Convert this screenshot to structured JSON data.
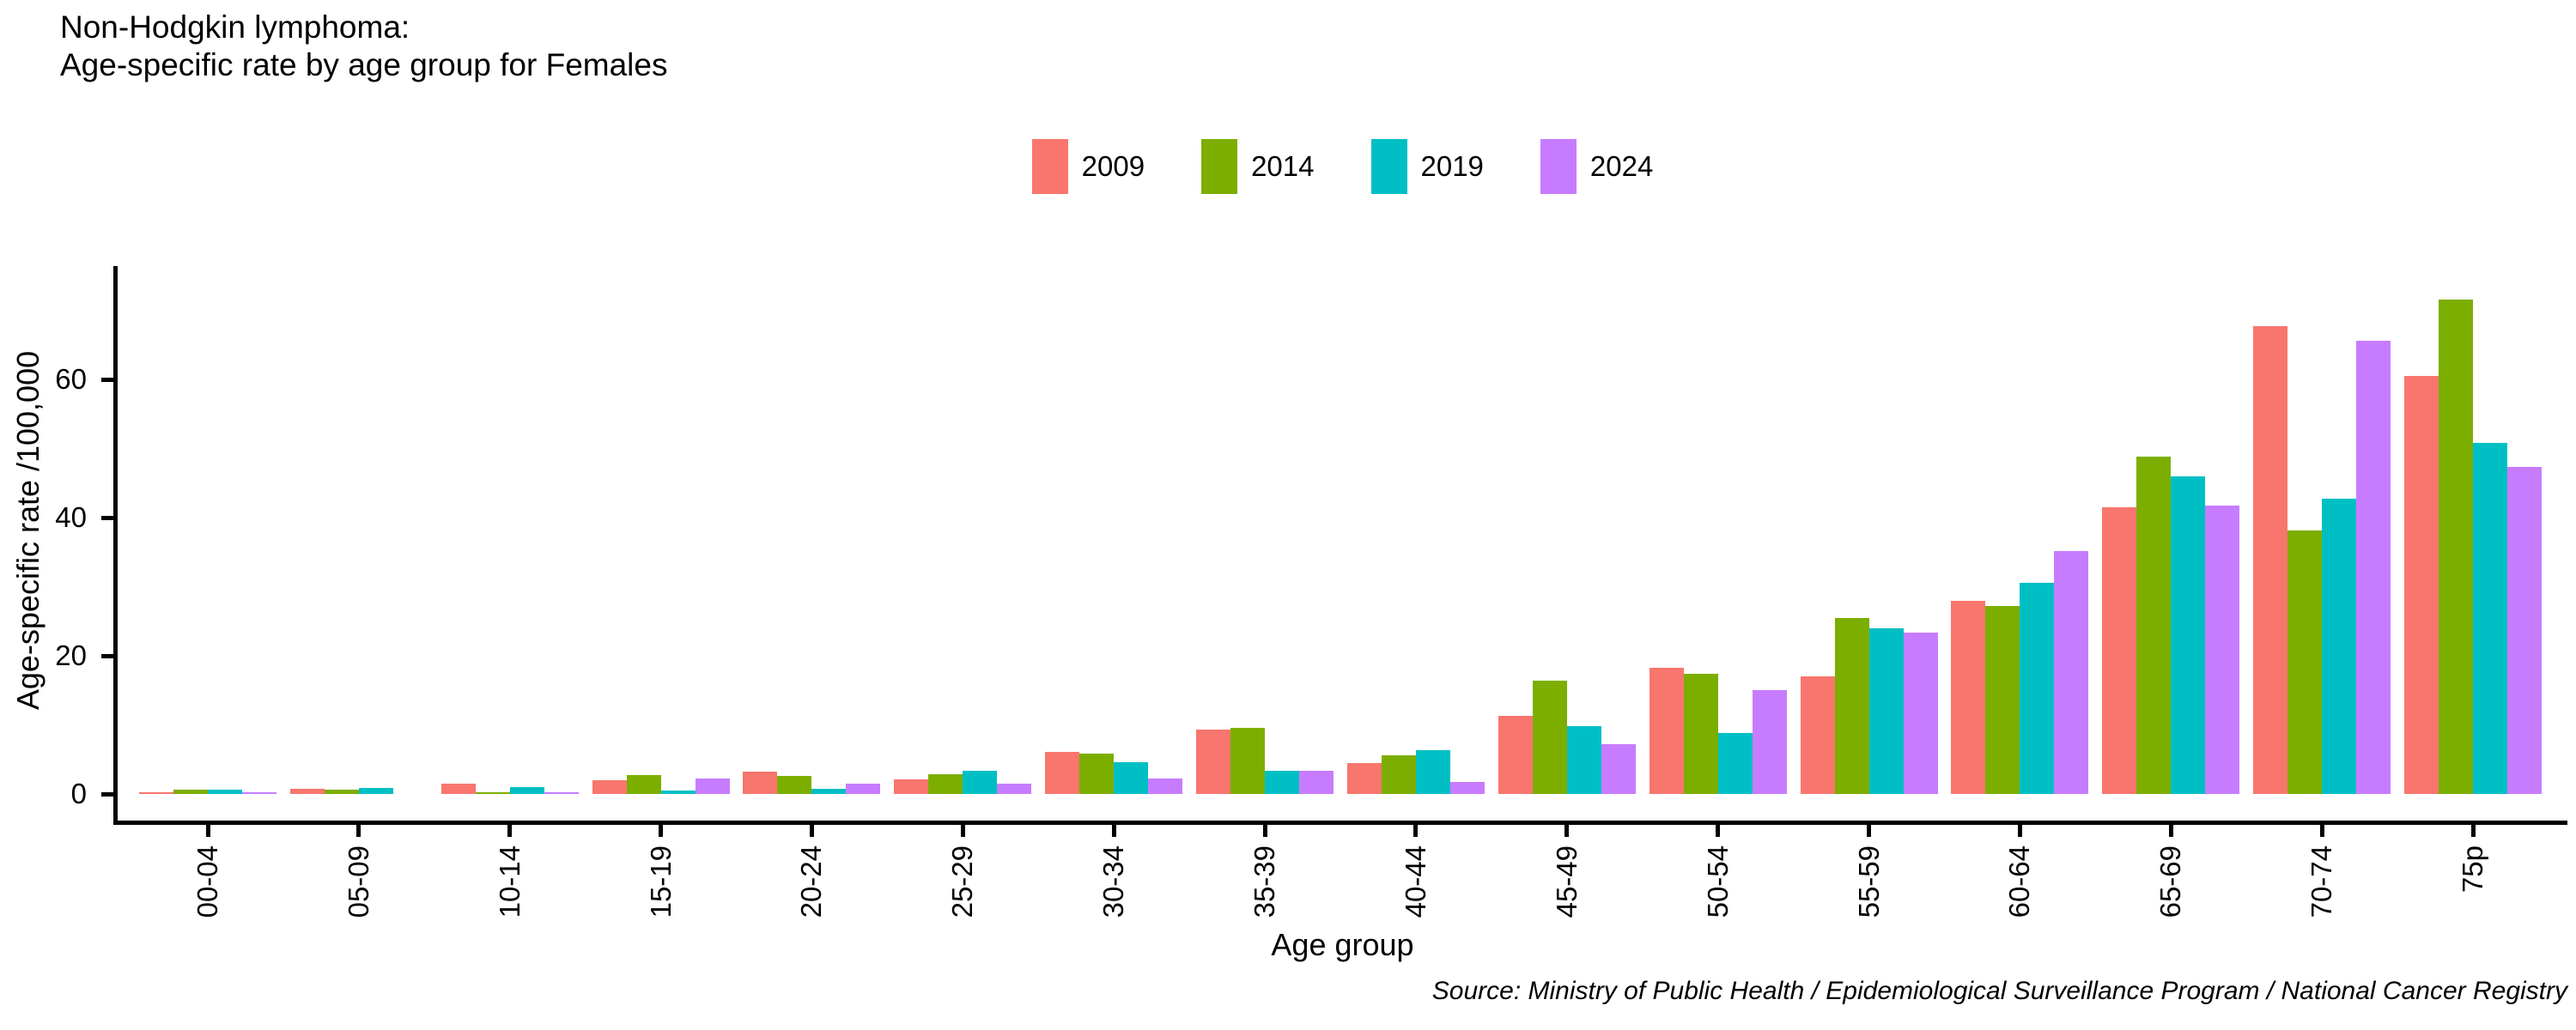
{
  "title": {
    "line1": "Non-Hodgkin lymphoma:",
    "line2": "Age-specific rate by age group for Females"
  },
  "axes": {
    "x_title": "Age group",
    "y_title": "Age-specific rate /100,000"
  },
  "source_note": "Source: Ministry of Public Health / Epidemiological Surveillance Program / National Cancer Registry",
  "chart_data": {
    "type": "bar",
    "title": "Non-Hodgkin lymphoma: Age-specific rate by age group for Females",
    "categories": [
      "00-04",
      "05-09",
      "10-14",
      "15-19",
      "20-24",
      "25-29",
      "30-34",
      "35-39",
      "40-44",
      "45-49",
      "50-54",
      "55-59",
      "60-64",
      "65-69",
      "70-74",
      "75p"
    ],
    "series": [
      {
        "name": "2009",
        "color": "#F8766D",
        "values": [
          0.3,
          0.8,
          1.5,
          2.0,
          3.2,
          2.1,
          6.1,
          9.3,
          4.5,
          11.3,
          18.3,
          17.0,
          28.0,
          41.5,
          67.7,
          60.5
        ]
      },
      {
        "name": "2014",
        "color": "#7CAE00",
        "values": [
          0.6,
          0.6,
          0.2,
          2.8,
          2.6,
          2.9,
          5.8,
          9.6,
          5.6,
          16.4,
          17.4,
          25.5,
          27.2,
          48.8,
          38.2,
          71.6
        ]
      },
      {
        "name": "2019",
        "color": "#00BFC4",
        "values": [
          0.6,
          0.9,
          1.0,
          0.5,
          0.7,
          3.4,
          4.6,
          3.3,
          6.3,
          9.8,
          8.8,
          24.0,
          30.6,
          46.0,
          42.7,
          50.8
        ]
      },
      {
        "name": "2024",
        "color": "#C77CFF",
        "values": [
          0.3,
          0.0,
          0.3,
          2.2,
          1.5,
          1.5,
          2.3,
          3.4,
          1.8,
          7.2,
          15.0,
          23.4,
          35.2,
          41.8,
          65.6,
          47.3
        ]
      }
    ],
    "xlabel": "Age group",
    "ylabel": "Age-specific rate /100,000",
    "yticks": [
      0,
      20,
      40,
      60
    ],
    "ylim": [
      0,
      76
    ],
    "grid": false,
    "legend_position": "top"
  }
}
